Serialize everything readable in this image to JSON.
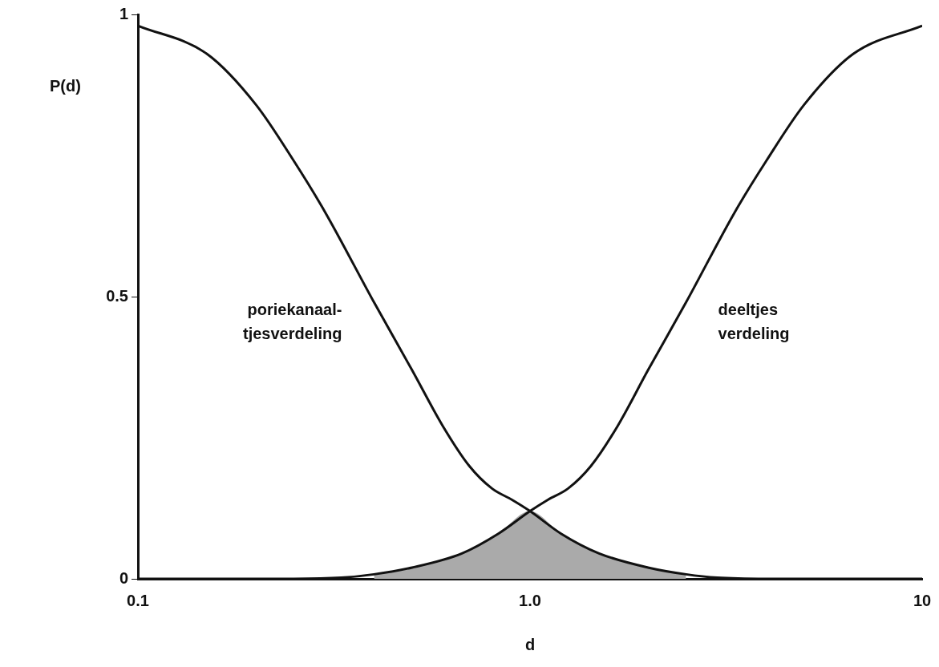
{
  "chart_data": {
    "type": "line",
    "xlabel": "d",
    "ylabel": "P(d)",
    "log": "x",
    "xlim": [
      0.1,
      10
    ],
    "xticks": [
      0.1,
      {
        "value": 1,
        "label": "1.0"
      },
      10
    ],
    "ylim": [
      0,
      1
    ],
    "yticks": [
      0,
      0.5,
      1
    ],
    "grid": false,
    "legend": false,
    "marker": "none",
    "line_style": "solid",
    "series": [
      {
        "name": "poriekanaal-\ntjesverdeling",
        "color": "#111111",
        "x": [
          0.1,
          0.15,
          0.2,
          0.25,
          0.3,
          0.4,
          0.5,
          0.6,
          0.7,
          0.8,
          0.9,
          1,
          1.2,
          1.5,
          2,
          2.5,
          3,
          4,
          10
        ],
        "values": [
          0.98,
          0.93,
          0.84,
          0.74,
          0.65,
          0.49,
          0.37,
          0.27,
          0.2,
          0.16,
          0.14,
          0.12,
          0.08,
          0.045,
          0.02,
          0.008,
          0.002,
          0,
          0
        ]
      },
      {
        "name": "deeltjes\nverdeling",
        "color": "#111111",
        "x": [
          0.1,
          0.25,
          0.33,
          0.4,
          0.5,
          0.67,
          0.83,
          1,
          1.11,
          1.25,
          1.43,
          1.67,
          2,
          2.5,
          3.33,
          4,
          5,
          6.67,
          10
        ],
        "values": [
          0,
          0,
          0.002,
          0.008,
          0.02,
          0.045,
          0.08,
          0.12,
          0.14,
          0.16,
          0.2,
          0.27,
          0.37,
          0.49,
          0.65,
          0.74,
          0.84,
          0.93,
          0.98
        ]
      },
      {
        "type": "area",
        "color": "#aaaaaa",
        "x": [
          0.4,
          0.5,
          0.67,
          0.83,
          1,
          1.2,
          1.5,
          2,
          2.5
        ],
        "values": [
          0.008,
          0.02,
          0.045,
          0.08,
          0.12,
          0.08,
          0.045,
          0.02,
          0.008
        ]
      }
    ]
  }
}
